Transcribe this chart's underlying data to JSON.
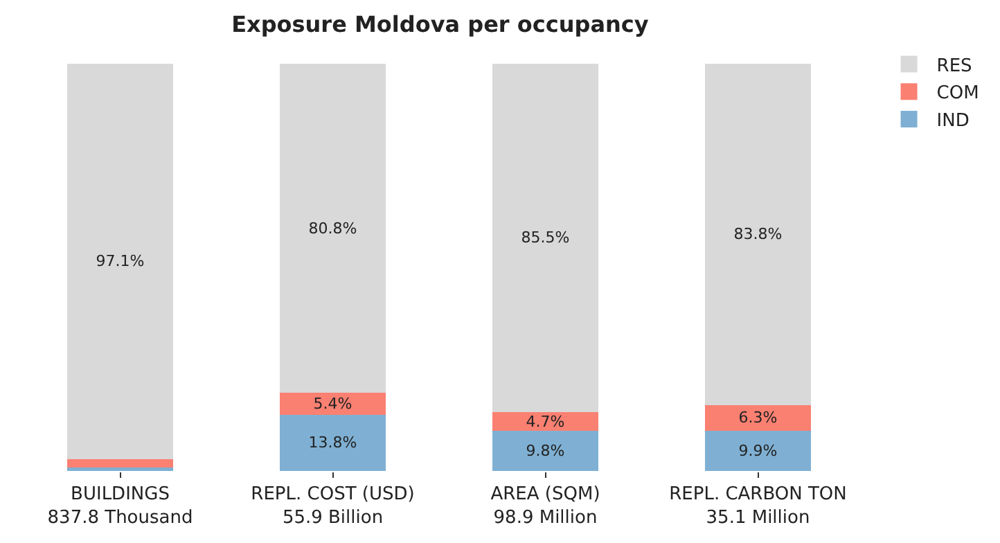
{
  "chart_data": {
    "type": "bar",
    "title": "Exposure Moldova per occupancy",
    "stacked": true,
    "categories": [
      "BUILDINGS\n837.8 Thousand",
      "REPL. COST (USD)\n55.9 Billion",
      "AREA (SQM)\n98.9 Million",
      "REPL. CARBON TON\n35.1 Million"
    ],
    "series": [
      {
        "name": "IND",
        "color": "#7fb0d3",
        "values": [
          0.8,
          13.8,
          9.8,
          9.9
        ],
        "value_labels": [
          null,
          "13.8%",
          "9.8%",
          "9.9%"
        ]
      },
      {
        "name": "COM",
        "color": "#fa8072",
        "values": [
          2.1,
          5.4,
          4.7,
          6.3
        ],
        "value_labels": [
          null,
          "5.4%",
          "4.7%",
          "6.3%"
        ]
      },
      {
        "name": "RES",
        "color": "#d9d9d9",
        "values": [
          97.1,
          80.8,
          85.5,
          83.8
        ],
        "value_labels": [
          "97.1%",
          "80.8%",
          "85.5%",
          "83.8%"
        ]
      }
    ],
    "ylim": [
      0,
      100
    ],
    "grid": false,
    "legend": "top right",
    "tick_labels": "x"
  }
}
